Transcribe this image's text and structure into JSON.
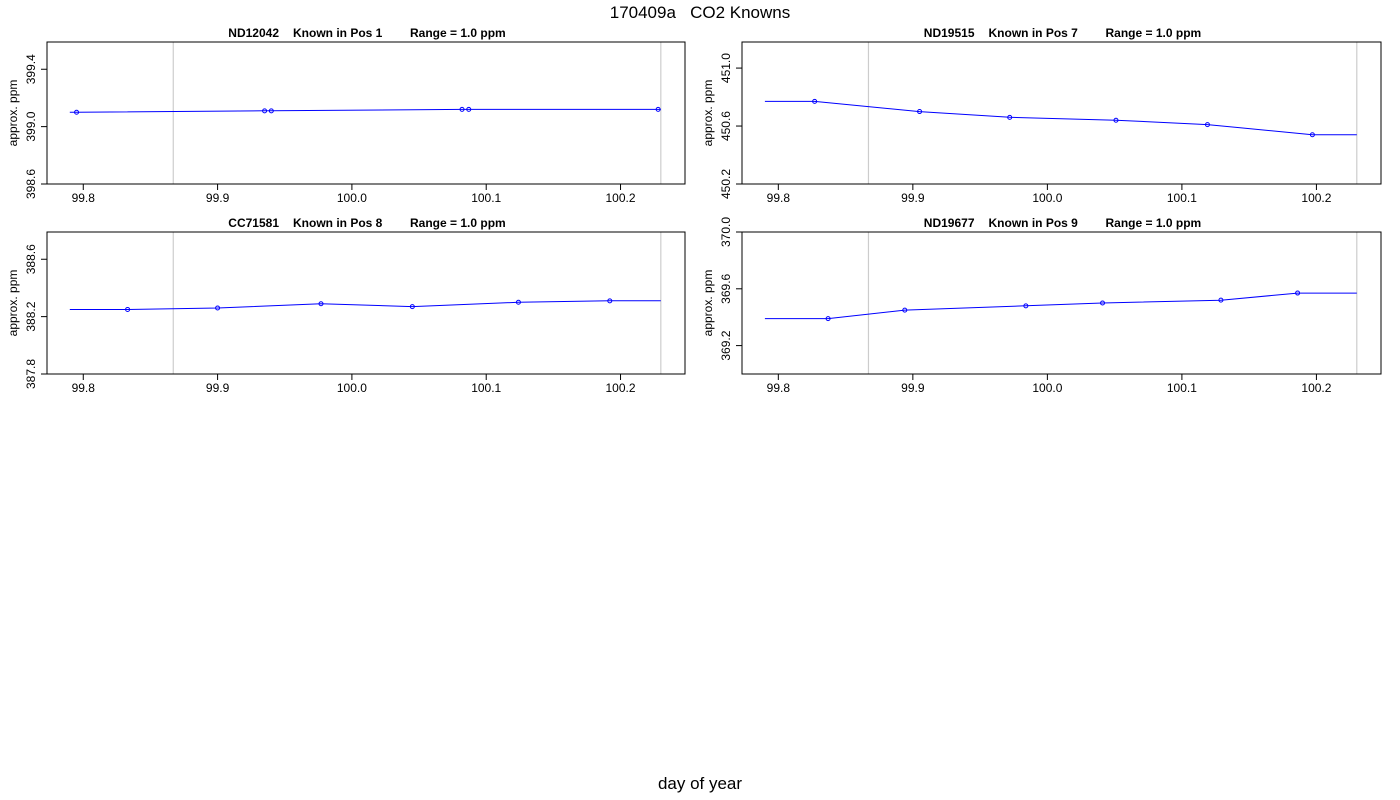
{
  "title": "170409a   CO2 Knowns",
  "xlabel": "day of year",
  "colors": {
    "series": "#0000ff",
    "marker_vline": "#cccccc",
    "frame": "#000000"
  },
  "chart_data": [
    {
      "type": "line",
      "panel_title": {
        "id": "ND12042",
        "pos": "Known in Pos 1",
        "range": "Range = 1.0 ppm"
      },
      "ylabel": "approx. ppm",
      "xlim": [
        99.773,
        100.248
      ],
      "ylim": [
        398.6,
        399.59
      ],
      "xticks": [
        99.8,
        99.9,
        100.0,
        100.1,
        100.2
      ],
      "yticks": [
        398.6,
        399.0,
        399.4
      ],
      "vlines": [
        99.867,
        100.23
      ],
      "line_x": [
        99.79,
        99.795,
        99.935,
        99.94,
        100.082,
        100.087,
        100.228,
        100.23
      ],
      "line_y": [
        399.1,
        399.1,
        399.11,
        399.11,
        399.12,
        399.12,
        399.12,
        399.12
      ],
      "points": {
        "x": [
          99.795,
          99.935,
          99.94,
          100.082,
          100.087,
          100.228
        ],
        "y": [
          399.1,
          399.11,
          399.11,
          399.12,
          399.12,
          399.12
        ]
      }
    },
    {
      "type": "line",
      "panel_title": {
        "id": "ND19515",
        "pos": "Known in Pos 7",
        "range": "Range = 1.0 ppm"
      },
      "ylabel": "approx. ppm",
      "xlim": [
        99.773,
        100.248
      ],
      "ylim": [
        450.2,
        451.18
      ],
      "xticks": [
        99.8,
        99.9,
        100.0,
        100.1,
        100.2
      ],
      "yticks": [
        450.2,
        450.6,
        451.0
      ],
      "vlines": [
        99.867,
        100.23
      ],
      "line_x": [
        99.79,
        99.827,
        99.905,
        99.972,
        100.051,
        100.119,
        100.197,
        100.23
      ],
      "line_y": [
        450.77,
        450.77,
        450.7,
        450.66,
        450.64,
        450.61,
        450.54,
        450.54
      ],
      "points": {
        "x": [
          99.827,
          99.905,
          99.972,
          100.051,
          100.119,
          100.197
        ],
        "y": [
          450.77,
          450.7,
          450.66,
          450.64,
          450.61,
          450.54
        ]
      }
    },
    {
      "type": "line",
      "panel_title": {
        "id": "CC71581",
        "pos": "Known in Pos 8",
        "range": "Range = 1.0 ppm"
      },
      "ylabel": "approx. ppm",
      "xlim": [
        99.773,
        100.248
      ],
      "ylim": [
        387.8,
        388.79
      ],
      "xticks": [
        99.8,
        99.9,
        100.0,
        100.1,
        100.2
      ],
      "yticks": [
        387.8,
        388.2,
        388.6
      ],
      "vlines": [
        99.867,
        100.23
      ],
      "line_x": [
        99.79,
        99.833,
        99.9,
        99.977,
        100.045,
        100.124,
        100.192,
        100.23
      ],
      "line_y": [
        388.25,
        388.25,
        388.26,
        388.29,
        388.27,
        388.3,
        388.31,
        388.31
      ],
      "points": {
        "x": [
          99.833,
          99.9,
          99.977,
          100.045,
          100.124,
          100.192
        ],
        "y": [
          388.25,
          388.26,
          388.29,
          388.27,
          388.3,
          388.31
        ]
      }
    },
    {
      "type": "line",
      "panel_title": {
        "id": "ND19677",
        "pos": "Known in Pos 9",
        "range": "Range = 1.0 ppm"
      },
      "ylabel": "approx. ppm",
      "xlim": [
        99.773,
        100.248
      ],
      "ylim": [
        369.0,
        370.0
      ],
      "xticks": [
        99.8,
        99.9,
        100.0,
        100.1,
        100.2
      ],
      "yticks": [
        369.2,
        369.6,
        370.0
      ],
      "vlines": [
        99.867,
        100.23
      ],
      "line_x": [
        99.79,
        99.837,
        99.894,
        99.984,
        100.041,
        100.129,
        100.186,
        100.23
      ],
      "line_y": [
        369.39,
        369.39,
        369.45,
        369.48,
        369.5,
        369.52,
        369.57,
        369.57
      ],
      "points": {
        "x": [
          99.837,
          99.894,
          99.984,
          100.041,
          100.129,
          100.186
        ],
        "y": [
          369.39,
          369.45,
          369.48,
          369.5,
          369.52,
          369.57
        ]
      }
    }
  ]
}
